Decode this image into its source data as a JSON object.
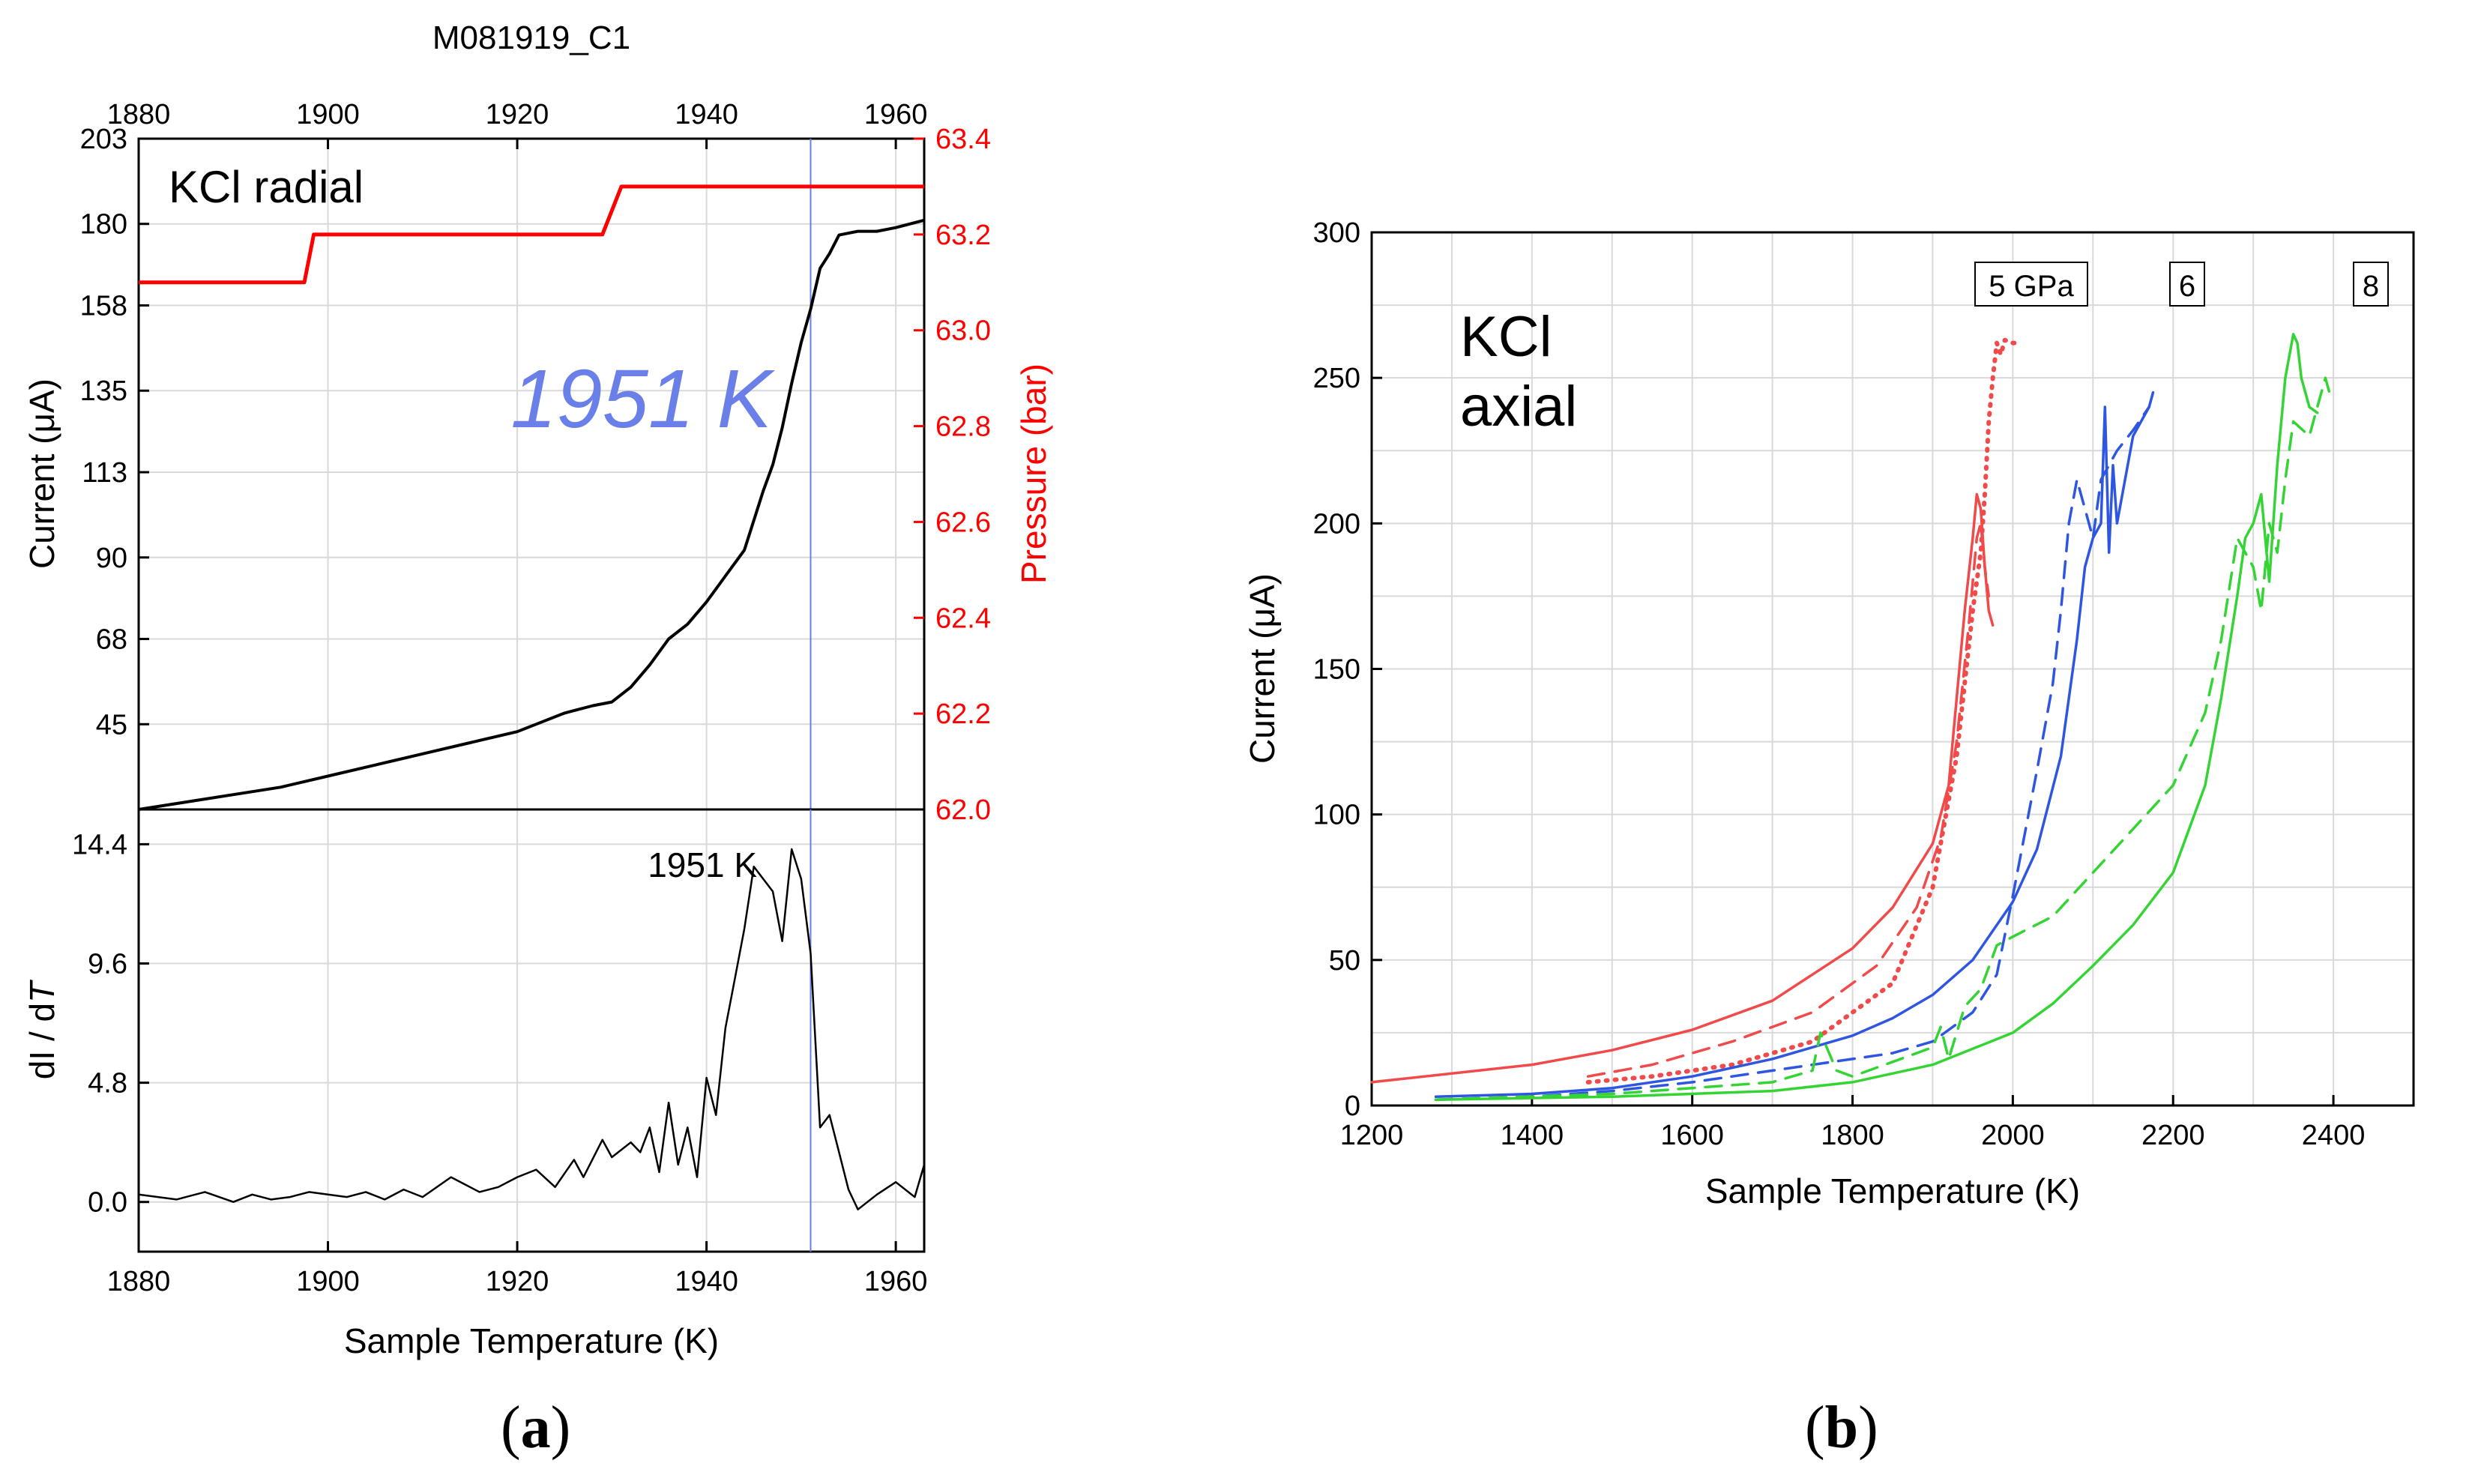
{
  "panel_labels": {
    "a_open": "(",
    "a": "a",
    "a_close": ")",
    "b_open": "(",
    "b": "b",
    "b_close": ")"
  },
  "chart_data": [
    {
      "panel": "a-top",
      "type": "line",
      "title": "M081919_C1",
      "annotation_text": "KCl radial",
      "annotation_marker": "1951 K",
      "marker_x": 1951,
      "ylabel": "Current (μA)",
      "y2label": "Pressure (bar)",
      "xlim": [
        1880,
        1963
      ],
      "ylim": [
        22,
        203
      ],
      "y2lim": [
        62.0,
        63.4
      ],
      "x_ticks": [
        1880,
        1900,
        1920,
        1940,
        1960
      ],
      "y_ticks": [
        45,
        68,
        90,
        113,
        135,
        158,
        180,
        203
      ],
      "y2_ticks": [
        62.0,
        62.2,
        62.4,
        62.6,
        62.8,
        63.0,
        63.2,
        63.4
      ],
      "grid": true,
      "colors": {
        "current": "#000000",
        "pressure": "#ff0000",
        "marker": "#6a7fe8",
        "grid": "#d9d9d9"
      },
      "series": [
        {
          "axis": "left",
          "color": "#000000",
          "x": [
            1880,
            1885,
            1890,
            1895,
            1900,
            1905,
            1910,
            1915,
            1920,
            1923,
            1925,
            1928,
            1930,
            1932,
            1934,
            1936,
            1938,
            1940,
            1942,
            1944,
            1946,
            1947,
            1948,
            1949,
            1950,
            1951,
            1952,
            1953,
            1954,
            1956,
            1958,
            1960,
            1963
          ],
          "y": [
            22,
            24,
            26,
            28,
            31,
            34,
            37,
            40,
            43,
            46,
            48,
            50,
            51,
            55,
            61,
            68,
            72,
            78,
            85,
            92,
            108,
            115,
            125,
            137,
            148,
            157,
            168,
            172,
            177,
            178,
            178,
            179,
            181
          ]
        },
        {
          "axis": "right",
          "color": "#ff0000",
          "x": [
            1880,
            1897.5,
            1898.5,
            1929,
            1931,
            1963
          ],
          "y": [
            63.1,
            63.1,
            63.2,
            63.2,
            63.3,
            63.3
          ]
        }
      ]
    },
    {
      "panel": "a-bottom",
      "type": "line",
      "annotation_marker": "1951 K",
      "marker_x": 1951,
      "xlabel": "Sample Temperature (K)",
      "ylabel_main": "dI / d",
      "ylabel_italic": "T",
      "xlim": [
        1880,
        1963
      ],
      "ylim": [
        -2,
        15.8
      ],
      "x_ticks": [
        1880,
        1900,
        1920,
        1940,
        1960
      ],
      "y_ticks": [
        0.0,
        4.8,
        9.6,
        14.4
      ],
      "grid": true,
      "series": [
        {
          "color": "#000000",
          "x": [
            1880,
            1884,
            1887,
            1890,
            1892,
            1894,
            1896,
            1898,
            1900,
            1902,
            1904,
            1906,
            1908,
            1910,
            1913,
            1916,
            1918,
            1920,
            1922,
            1924,
            1926,
            1927,
            1929,
            1930,
            1932,
            1933,
            1934,
            1935,
            1936,
            1937,
            1938,
            1939,
            1940,
            1941,
            1942,
            1943,
            1944,
            1945,
            1946,
            1947,
            1948,
            1949,
            1950,
            1951,
            1952,
            1953,
            1954,
            1955,
            1956,
            1958,
            1960,
            1962,
            1963
          ],
          "y": [
            0.3,
            0.1,
            0.4,
            0.0,
            0.3,
            0.1,
            0.2,
            0.4,
            0.3,
            0.2,
            0.4,
            0.1,
            0.5,
            0.2,
            1.0,
            0.4,
            0.6,
            1.0,
            1.3,
            0.6,
            1.7,
            1.0,
            2.5,
            1.8,
            2.4,
            2.0,
            3.0,
            1.2,
            4.0,
            1.5,
            3.0,
            1.0,
            5.0,
            3.5,
            7.0,
            9.0,
            11.0,
            13.5,
            13.0,
            12.5,
            10.5,
            14.2,
            13.0,
            10.0,
            3.0,
            3.5,
            2.0,
            0.5,
            -0.3,
            0.3,
            0.8,
            0.2,
            1.5
          ]
        }
      ]
    },
    {
      "panel": "b",
      "type": "line",
      "annotation_text_line1": "KCl",
      "annotation_text_line2": "axial",
      "pressure_labels": [
        "5 GPa",
        "6",
        "8"
      ],
      "xlabel": "Sample Temperature (K)",
      "ylabel": "Current (μA)",
      "xlim": [
        1200,
        2500
      ],
      "ylim": [
        0,
        300
      ],
      "x_ticks": [
        1200,
        1400,
        1600,
        1800,
        2000,
        2200,
        2400
      ],
      "y_ticks": [
        0,
        50,
        100,
        150,
        200,
        250,
        300
      ],
      "grid": true,
      "colors": {
        "5 GPa": "#f04a4a",
        "6": "#2f56e0",
        "8": "#35d435"
      },
      "series": [
        {
          "group": "5 GPa",
          "style": "solid",
          "color": "#f04a4a",
          "x": [
            1200,
            1300,
            1400,
            1500,
            1600,
            1700,
            1800,
            1850,
            1900,
            1920,
            1930,
            1940,
            1950,
            1955,
            1960,
            1965,
            1970,
            1975
          ],
          "y": [
            8,
            11,
            14,
            19,
            26,
            36,
            54,
            68,
            90,
            110,
            140,
            170,
            195,
            210,
            205,
            185,
            170,
            165
          ]
        },
        {
          "group": "5 GPa",
          "style": "dashed",
          "color": "#f04a4a",
          "x": [
            1470,
            1550,
            1650,
            1750,
            1830,
            1880,
            1910,
            1930,
            1945,
            1955,
            1960,
            1965,
            1970
          ],
          "y": [
            10,
            14,
            22,
            32,
            48,
            68,
            92,
            125,
            165,
            195,
            200,
            185,
            175
          ]
        },
        {
          "group": "5 GPa",
          "style": "dotted",
          "color": "#f04a4a",
          "x": [
            1470,
            1550,
            1650,
            1750,
            1850,
            1900,
            1930,
            1950,
            1960,
            1965,
            1970,
            1975,
            1980,
            1985,
            1990,
            2000,
            2010
          ],
          "y": [
            8,
            10,
            14,
            22,
            42,
            75,
            120,
            170,
            190,
            210,
            235,
            250,
            262,
            258,
            263,
            262,
            262
          ]
        },
        {
          "group": "6",
          "style": "solid",
          "color": "#2f56e0",
          "x": [
            1280,
            1400,
            1500,
            1600,
            1700,
            1800,
            1850,
            1900,
            1950,
            2000,
            2030,
            2060,
            2080,
            2090,
            2100,
            2110,
            2115,
            2120,
            2125,
            2130,
            2140,
            2150,
            2160,
            2170,
            2175
          ],
          "y": [
            3,
            4,
            6,
            10,
            16,
            24,
            30,
            38,
            50,
            70,
            88,
            120,
            160,
            185,
            195,
            200,
            240,
            190,
            220,
            200,
            215,
            230,
            235,
            240,
            245
          ]
        },
        {
          "group": "6",
          "style": "dashed",
          "color": "#2f56e0",
          "x": [
            1280,
            1400,
            1500,
            1600,
            1700,
            1800,
            1850,
            1900,
            1950,
            1980,
            2000,
            2030,
            2050,
            2060,
            2070,
            2080,
            2090,
            2100,
            2110,
            2130,
            2150,
            2170
          ],
          "y": [
            2,
            3,
            5,
            8,
            12,
            16,
            18,
            22,
            32,
            45,
            72,
            115,
            145,
            170,
            200,
            215,
            205,
            195,
            215,
            225,
            232,
            240
          ]
        },
        {
          "group": "8",
          "style": "solid",
          "color": "#35d435",
          "x": [
            1280,
            1500,
            1700,
            1800,
            1900,
            2000,
            2050,
            2100,
            2150,
            2200,
            2240,
            2260,
            2280,
            2290,
            2300,
            2310,
            2320,
            2330,
            2340,
            2350,
            2355,
            2360,
            2370,
            2380
          ],
          "y": [
            2,
            3,
            5,
            8,
            14,
            25,
            35,
            48,
            62,
            80,
            110,
            140,
            175,
            195,
            200,
            210,
            180,
            220,
            250,
            265,
            262,
            250,
            240,
            238
          ]
        },
        {
          "group": "8",
          "style": "dashed",
          "color": "#35d435",
          "x": [
            1280,
            1500,
            1700,
            1750,
            1760,
            1780,
            1800,
            1850,
            1880,
            1900,
            1910,
            1920,
            1940,
            1960,
            1980,
            2000,
            2050,
            2100,
            2150,
            2200,
            2240,
            2260,
            2280,
            2300,
            2310,
            2320,
            2330,
            2340,
            2350,
            2370,
            2390,
            2395
          ],
          "y": [
            2,
            4,
            8,
            12,
            25,
            12,
            10,
            15,
            18,
            20,
            27,
            16,
            34,
            40,
            55,
            58,
            65,
            80,
            95,
            110,
            135,
            160,
            195,
            185,
            170,
            200,
            190,
            215,
            235,
            230,
            250,
            245
          ]
        }
      ]
    }
  ]
}
